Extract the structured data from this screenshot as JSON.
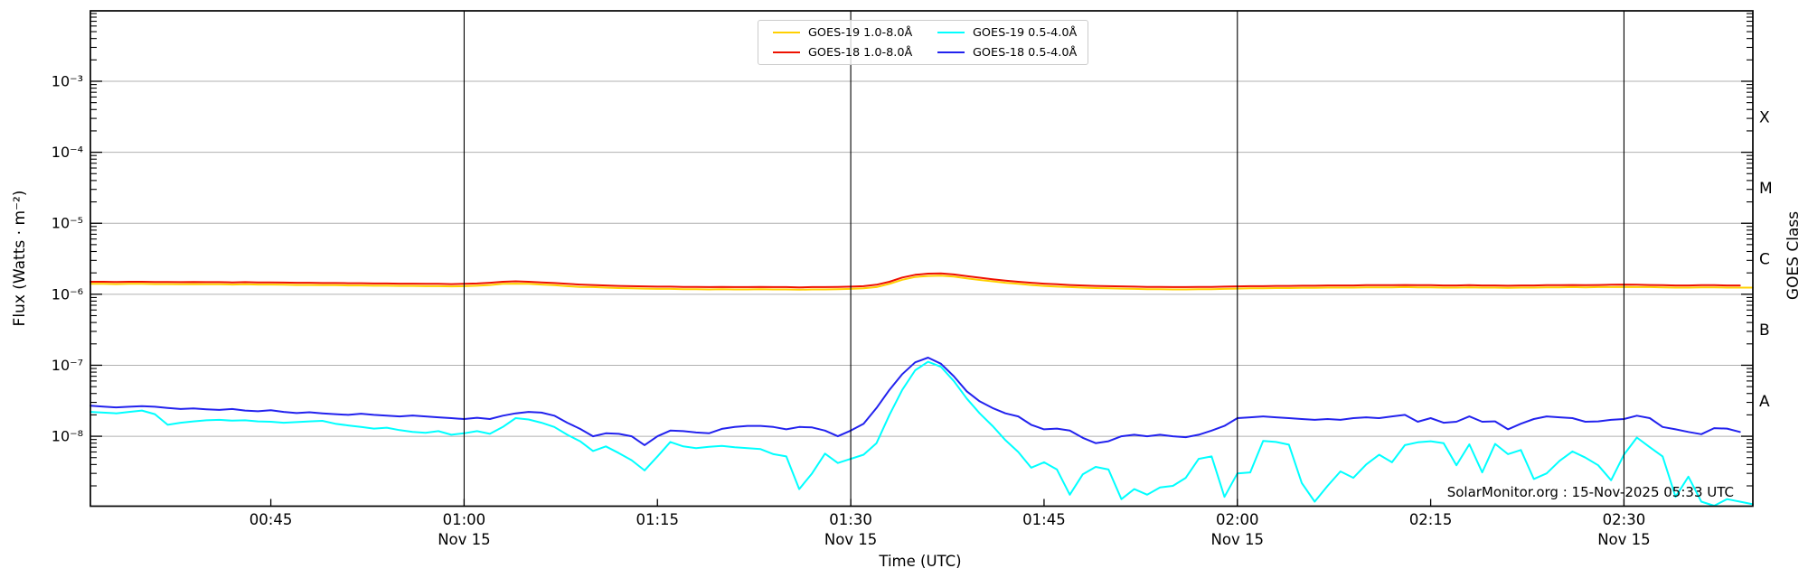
{
  "figure": {
    "timestamp_text": "SolarMonitor.org : 15-Nov-2025 05:33 UTC"
  },
  "colors": {
    "grid": "#b0b0b0",
    "axis": "#000000",
    "vline": "#000000",
    "background": "#ffffff"
  },
  "chart_data": {
    "type": "line",
    "title": "",
    "xlabel": "Time (UTC)",
    "ylabel_left": "Flux (Watts · m⁻²)",
    "ylabel_right": "GOES Class",
    "grid": "horizontal decades on, vertical black lines every 30 min",
    "legend_position": "upper center, 2 columns",
    "x_axis": {
      "t_min": 31,
      "t_max": 160,
      "units": "minutes after 00:00 UTC on 15 Nov 2025",
      "major_ticks": [
        {
          "minute": 45,
          "label": "00:45",
          "sub_label": ""
        },
        {
          "minute": 60,
          "label": "01:00",
          "sub_label": "Nov 15"
        },
        {
          "minute": 75,
          "label": "01:15",
          "sub_label": ""
        },
        {
          "minute": 90,
          "label": "01:30",
          "sub_label": "Nov 15"
        },
        {
          "minute": 105,
          "label": "01:45",
          "sub_label": ""
        },
        {
          "minute": 120,
          "label": "02:00",
          "sub_label": "Nov 15"
        },
        {
          "minute": 135,
          "label": "02:15",
          "sub_label": ""
        },
        {
          "minute": 150,
          "label": "02:30",
          "sub_label": "Nov 15"
        }
      ],
      "vlines_minutes": [
        60,
        90,
        120,
        150
      ]
    },
    "y_axis": {
      "scale": "log",
      "log_min": -8.985,
      "log_max": -2.008,
      "tick_labels": [
        {
          "exp": -3,
          "label": "10⁻³"
        },
        {
          "exp": -4,
          "label": "10⁻⁴"
        },
        {
          "exp": -5,
          "label": "10⁻⁵"
        },
        {
          "exp": -6,
          "label": "10⁻⁶"
        },
        {
          "exp": -7,
          "label": "10⁻⁷"
        },
        {
          "exp": -8,
          "label": "10⁻⁸"
        }
      ]
    },
    "class_bands": [
      {
        "label": "X",
        "log_center": -3.5
      },
      {
        "label": "M",
        "log_center": -4.5
      },
      {
        "label": "C",
        "log_center": -5.5
      },
      {
        "label": "B",
        "log_center": -6.5
      },
      {
        "label": "A",
        "log_center": -7.5
      }
    ],
    "series": [
      {
        "name": "goes19-long",
        "label": "GOES-19 1.0-8.0Å",
        "color": "#ffd000",
        "t_start": 31,
        "step": 1,
        "scale": 1e-06,
        "values": [
          1.4,
          1.4,
          1.39,
          1.4,
          1.4,
          1.39,
          1.39,
          1.38,
          1.39,
          1.38,
          1.38,
          1.37,
          1.38,
          1.37,
          1.37,
          1.36,
          1.35,
          1.35,
          1.34,
          1.34,
          1.33,
          1.33,
          1.32,
          1.32,
          1.31,
          1.31,
          1.3,
          1.3,
          1.29,
          1.3,
          1.32,
          1.35,
          1.4,
          1.41,
          1.4,
          1.37,
          1.34,
          1.3,
          1.27,
          1.26,
          1.24,
          1.22,
          1.21,
          1.2,
          1.19,
          1.19,
          1.18,
          1.18,
          1.17,
          1.18,
          1.17,
          1.17,
          1.18,
          1.17,
          1.17,
          1.16,
          1.17,
          1.17,
          1.18,
          1.19,
          1.21,
          1.26,
          1.4,
          1.6,
          1.75,
          1.81,
          1.83,
          1.77,
          1.67,
          1.59,
          1.52,
          1.45,
          1.4,
          1.35,
          1.31,
          1.28,
          1.26,
          1.24,
          1.22,
          1.21,
          1.2,
          1.19,
          1.18,
          1.18,
          1.17,
          1.17,
          1.18,
          1.18,
          1.19,
          1.2,
          1.21,
          1.21,
          1.22,
          1.22,
          1.23,
          1.23,
          1.24,
          1.24,
          1.24,
          1.25,
          1.25,
          1.25,
          1.26,
          1.25,
          1.25,
          1.24,
          1.24,
          1.25,
          1.24,
          1.24,
          1.23,
          1.24,
          1.24,
          1.25,
          1.25,
          1.26,
          1.25,
          1.26,
          1.26,
          1.27,
          1.26,
          1.26,
          1.25,
          1.24,
          1.24,
          1.25,
          1.25,
          1.24,
          1.24,
          1.24
        ]
      },
      {
        "name": "goes18-long",
        "label": "GOES-18 1.0-8.0Å",
        "color": "#ee1100",
        "t_start": 31,
        "step": 1,
        "scale": 1e-06,
        "values": [
          1.5,
          1.5,
          1.49,
          1.5,
          1.5,
          1.49,
          1.49,
          1.48,
          1.49,
          1.48,
          1.48,
          1.47,
          1.48,
          1.47,
          1.47,
          1.46,
          1.45,
          1.45,
          1.44,
          1.44,
          1.43,
          1.43,
          1.42,
          1.42,
          1.41,
          1.41,
          1.4,
          1.4,
          1.39,
          1.4,
          1.42,
          1.45,
          1.5,
          1.52,
          1.5,
          1.47,
          1.44,
          1.4,
          1.37,
          1.35,
          1.33,
          1.31,
          1.3,
          1.29,
          1.28,
          1.28,
          1.27,
          1.27,
          1.26,
          1.27,
          1.26,
          1.26,
          1.27,
          1.26,
          1.26,
          1.25,
          1.26,
          1.26,
          1.27,
          1.28,
          1.3,
          1.36,
          1.5,
          1.72,
          1.88,
          1.95,
          1.97,
          1.9,
          1.8,
          1.71,
          1.63,
          1.56,
          1.5,
          1.45,
          1.41,
          1.38,
          1.35,
          1.33,
          1.31,
          1.3,
          1.29,
          1.28,
          1.27,
          1.27,
          1.26,
          1.26,
          1.27,
          1.27,
          1.28,
          1.29,
          1.3,
          1.3,
          1.31,
          1.31,
          1.32,
          1.32,
          1.33,
          1.33,
          1.33,
          1.34,
          1.34,
          1.34,
          1.35,
          1.34,
          1.34,
          1.33,
          1.33,
          1.34,
          1.33,
          1.33,
          1.32,
          1.33,
          1.33,
          1.34,
          1.34,
          1.35,
          1.34,
          1.35,
          1.36,
          1.37,
          1.36,
          1.35,
          1.34,
          1.33,
          1.33,
          1.34,
          1.34,
          1.33,
          1.33
        ]
      },
      {
        "name": "goes19-short",
        "label": "GOES-19 0.5-4.0Å",
        "color": "#00ffff",
        "t_start": 31,
        "step": 1,
        "scale": 1e-09,
        "values": [
          22,
          21.5,
          21,
          22,
          23,
          20.5,
          14.5,
          15.5,
          16.2,
          16.8,
          17,
          16.6,
          16.8,
          16.2,
          16,
          15.5,
          15.8,
          16.2,
          16.5,
          15,
          14.2,
          13.5,
          12.8,
          13.2,
          12.2,
          11.5,
          11.2,
          11.8,
          10.5,
          11,
          11.8,
          10.8,
          13.5,
          18,
          17.2,
          15.5,
          13.5,
          10.5,
          8.5,
          6.2,
          7.2,
          5.8,
          4.6,
          3.3,
          5.2,
          8.3,
          7.2,
          6.8,
          7.1,
          7.3,
          7,
          6.8,
          6.6,
          5.6,
          5.2,
          1.8,
          3,
          5.7,
          4.2,
          4.8,
          5.5,
          8,
          20,
          45,
          85,
          112,
          95,
          60,
          34,
          21,
          14,
          8.8,
          6,
          3.6,
          4.3,
          3.4,
          1.5,
          2.9,
          3.7,
          3.4,
          1.3,
          1.8,
          1.5,
          1.9,
          2,
          2.6,
          4.8,
          5.2,
          1.4,
          3,
          3.1,
          8.6,
          8.3,
          7.6,
          2.2,
          1.2,
          2,
          3.2,
          2.6,
          4,
          5.5,
          4.3,
          7.5,
          8.2,
          8.5,
          8,
          3.9,
          7.7,
          3.1,
          7.8,
          5.6,
          6.4,
          2.5,
          3,
          4.5,
          6.1,
          5,
          3.9,
          2.4,
          5.5,
          9.6,
          7,
          5.2,
          1.4,
          2.7,
          1.2,
          1.05,
          1.3,
          1.2,
          1.1
        ]
      },
      {
        "name": "goes18-short",
        "label": "GOES-18 0.5-4.0Å",
        "color": "#2222ee",
        "t_start": 31,
        "step": 1,
        "scale": 1e-09,
        "values": [
          27,
          26.2,
          25.5,
          26,
          26.5,
          26,
          25,
          24.2,
          24.6,
          24,
          23.5,
          24.2,
          23,
          22.5,
          23.2,
          22,
          21.2,
          21.8,
          21,
          20.5,
          20,
          20.8,
          20,
          19.5,
          19,
          19.6,
          19,
          18.5,
          18,
          17.5,
          18.2,
          17.5,
          19.5,
          21,
          22,
          21.5,
          19.5,
          15.5,
          12.7,
          10,
          11,
          10.8,
          10,
          7.5,
          10,
          12,
          11.8,
          11.3,
          11,
          12.7,
          13.5,
          14,
          14,
          13.5,
          12.5,
          13.5,
          13.3,
          12,
          10,
          12,
          15,
          25,
          45,
          75,
          110,
          128,
          105,
          70,
          43,
          31,
          25,
          21,
          19,
          14.5,
          12.5,
          12.8,
          12,
          9.5,
          8,
          8.5,
          10,
          10.5,
          10,
          10.5,
          10,
          9.7,
          10.5,
          12,
          14,
          18,
          18.5,
          19,
          18.5,
          18,
          17.5,
          17,
          17.5,
          17,
          18,
          18.5,
          18,
          19,
          20,
          16,
          18,
          15.5,
          16,
          19,
          16,
          16.2,
          12.5,
          15,
          17.5,
          19,
          18.5,
          18,
          16,
          16.2,
          17,
          17.5,
          19.5,
          18,
          13.5,
          12.5,
          11.5,
          10.7,
          13,
          12.8,
          11.5
        ]
      }
    ]
  }
}
